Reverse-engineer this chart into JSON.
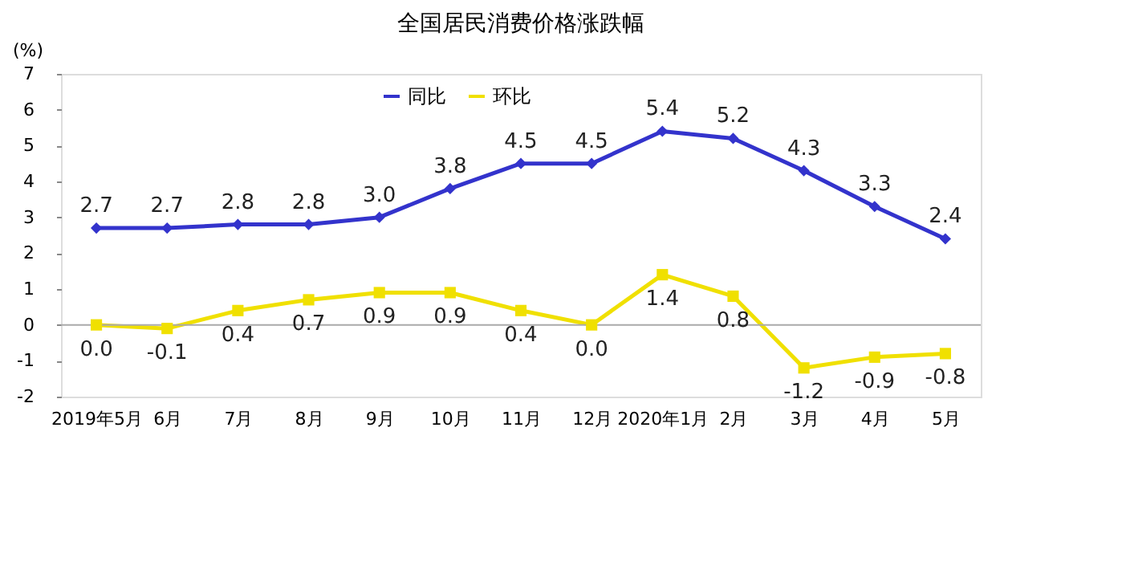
{
  "chart_data": {
    "type": "line",
    "title": "全国居民消费价格涨跌幅",
    "ylabel": "(%)",
    "categories": [
      "2019年5月",
      "6月",
      "7月",
      "8月",
      "9月",
      "10月",
      "11月",
      "12月",
      "2020年1月",
      "2月",
      "3月",
      "4月",
      "5月"
    ],
    "series": [
      {
        "name": "同比",
        "color": "#3333cc",
        "marker": "diamond",
        "values": [
          2.7,
          2.7,
          2.8,
          2.8,
          3.0,
          3.8,
          4.5,
          4.5,
          5.4,
          5.2,
          4.3,
          3.3,
          2.4
        ],
        "value_labels": [
          "2.7",
          "2.7",
          "2.8",
          "2.8",
          "3.0",
          "3.8",
          "4.5",
          "4.5",
          "5.4",
          "5.2",
          "4.3",
          "3.3",
          "2.4"
        ]
      },
      {
        "name": "环比",
        "color": "#f0e000",
        "marker": "square",
        "values": [
          0.0,
          -0.1,
          0.4,
          0.7,
          0.9,
          0.9,
          0.4,
          0.0,
          1.4,
          0.8,
          -1.2,
          -0.9,
          -0.8
        ],
        "value_labels": [
          "0.0",
          "-0.1",
          "0.4",
          "0.7",
          "0.9",
          "0.9",
          "0.4",
          "0.0",
          "1.4",
          "0.8",
          "-1.2",
          "-0.9",
          "-0.8"
        ]
      }
    ],
    "ylim": [
      -2,
      7
    ],
    "yticks": [
      -2,
      -1,
      0,
      1,
      2,
      3,
      4,
      5,
      6,
      7
    ],
    "ref_lines": [
      {
        "axis": "y",
        "value": 0,
        "label": null,
        "color": "#aaaaaa"
      }
    ],
    "legend": "top",
    "grid": false,
    "line_style": "solid"
  }
}
